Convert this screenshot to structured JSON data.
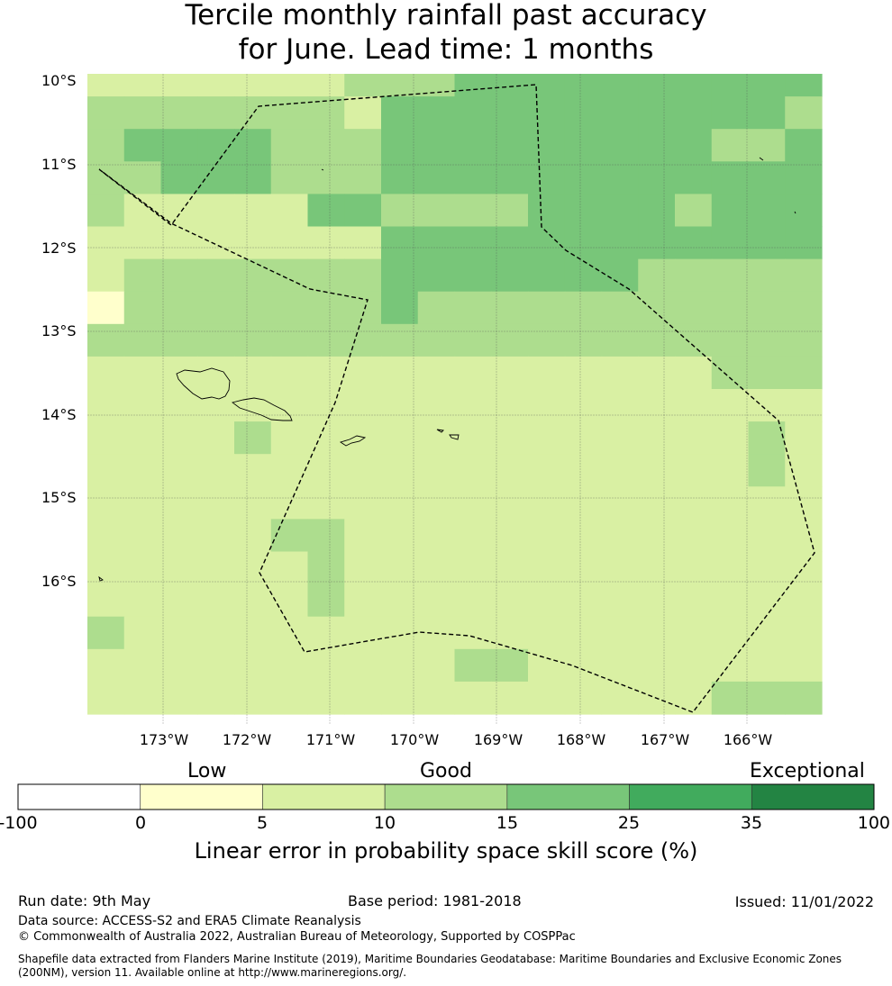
{
  "title": {
    "line1": "Tercile monthly rainfall past accuracy",
    "line2": "for June. Lead time: 1 months"
  },
  "map": {
    "lat_labels": [
      "10°S",
      "11°S",
      "12°S",
      "13°S",
      "14°S",
      "15°S",
      "16°S"
    ],
    "lon_labels": [
      "173°W",
      "172°W",
      "171°W",
      "170°W",
      "169°W",
      "168°W",
      "167°W",
      "166°W"
    ],
    "grid_rows": [
      "22222223334444444444",
      "33333332444444444443",
      "34444333444444444334",
      "33444333444444444444",
      "32222244333344443444",
      "22222222444444444444",
      "23333333444444433333",
      "13333333433333333333",
      "33333333333333333333",
      "22222222222222222333",
      "22222222222222222222",
      "22223222222222222232",
      "22222222222222222232",
      "22222222222222222222",
      "22222332222222222222",
      "22222232222222222222",
      "22222232222222222222",
      "32222222222222222222",
      "22222222223322222222",
      "22222222222222222333"
    ],
    "color_classes": [
      "#ffffff",
      "#ffffcc",
      "#d9f0a3",
      "#addd8e",
      "#78c679",
      "#41ab5d",
      "#238443"
    ],
    "boundary_line": "dashed",
    "features": [
      "samoa-islands",
      "eez-boundary"
    ]
  },
  "colorbar": {
    "categories": [
      "Low",
      "Good",
      "Exceptional"
    ],
    "ticks": [
      "-100",
      "0",
      "5",
      "10",
      "15",
      "25",
      "35",
      "100"
    ],
    "colors": [
      "#ffffff",
      "#ffffcc",
      "#d9f0a3",
      "#addd8e",
      "#78c679",
      "#41ab5d",
      "#238443"
    ],
    "label": "Linear error in probability space skill score (%)"
  },
  "footer": {
    "run_date": "Run date: 9th May",
    "base_period": "Base period: 1981-2018",
    "issued": "Issued: 11/01/2022",
    "data_source": "Data source: ACCESS-S2 and ERA5 Climate Reanalysis",
    "copyright": "© Commonwealth of Australia 2022, Australian Bureau of Meteorology, Supported by COSPPac",
    "shapefile": "Shapefile data extracted from Flanders Marine Institute (2019), Maritime Boundaries Geodatabase: Maritime Boundaries and Exclusive Economic Zones (200NM), version 11. Available online at http://www.marineregions.org/."
  }
}
